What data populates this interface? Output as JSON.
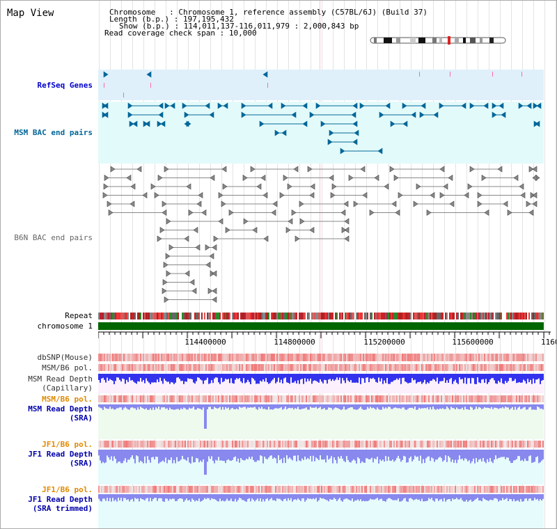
{
  "title": "Map View",
  "info": {
    "chromosome_key": "Chromosome",
    "chromosome_value": "Chromosome 1, reference assembly (C57BL/6J) (Build 37)",
    "length_key": "Length (b.p.)",
    "length_value": "197,195,432",
    "show_key": "Show (b.p.)",
    "show_value": "114,011,137-116,011,979 : 2,000,843 bp",
    "read_key": "Read coverage check span",
    "read_value": "10,000"
  },
  "tracks": [
    {
      "id": "refseq",
      "label": "RefSeq Genes",
      "color": "#0000cc"
    },
    {
      "id": "msm-bac",
      "label": "MSM BAC end pairs",
      "color": "#006699"
    },
    {
      "id": "b6n-bac",
      "label": "B6N BAC end pairs",
      "color": "#666666"
    },
    {
      "id": "repeat",
      "label": "Repeat",
      "color": "#000000"
    },
    {
      "id": "chromosome",
      "label": "chromosome 1",
      "color": "#000000"
    },
    {
      "id": "dbsnp",
      "label": "dbSNP(Mouse)",
      "color": "#333333"
    },
    {
      "id": "msm-b6-pol-1",
      "label": "MSM/B6 pol.",
      "color": "#333333"
    },
    {
      "id": "msm-depth-cap",
      "label": "MSM Read Depth",
      "label2": "(Capillary)",
      "color": "#333333"
    },
    {
      "id": "msm-b6-pol-2",
      "label": "MSM/B6 pol.",
      "color": "#e08a00"
    },
    {
      "id": "msm-depth-sra",
      "label": "MSM Read Depth",
      "label2": "(SRA)",
      "color": "#0000aa"
    },
    {
      "id": "jf1-b6-pol-1",
      "label": "JF1/B6 pol.",
      "color": "#e08a00"
    },
    {
      "id": "jf1-depth-sra",
      "label": "JF1 Read Depth",
      "label2": "(SRA)",
      "color": "#0000aa"
    },
    {
      "id": "jf1-b6-pol-2",
      "label": "JF1/B6 pol.",
      "color": "#e08a00"
    },
    {
      "id": "jf1-depth-trim",
      "label": "JF1 Read Depth",
      "label2": "(SRA trimmed)",
      "color": "#0000aa"
    }
  ],
  "axis": {
    "ticks": [
      "114400000",
      "114800000",
      "115200000",
      "115600000",
      "1160"
    ]
  },
  "colors": {
    "refseq_bg": "#dff0fb",
    "msm_bac_bg": "#e3fafa",
    "depth_bg_pink": "#fbf0fb",
    "depth_bg_green": "#eefaee",
    "depth_bg_cyan": "#e6fbfb",
    "chromosome": "#006600",
    "feature_blue": "#006699",
    "feature_gray": "#666666",
    "depth_blue": "#3333ee",
    "depth_light": "#8888ee",
    "snp_red": "#ee2222",
    "pol_orange_pink": "#f4b0b0"
  }
}
